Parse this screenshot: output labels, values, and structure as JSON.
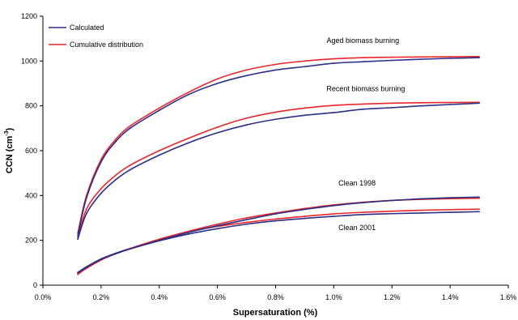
{
  "chart_data": {
    "type": "line",
    "xlabel": "Supersaturation (%)",
    "ylabel_main": "CCN (cm",
    "ylabel_sup": "-3",
    "ylabel_close": ")",
    "xlim": [
      0.0,
      1.6
    ],
    "ylim": [
      0,
      1200
    ],
    "x_ticks": [
      0.0,
      0.2,
      0.4,
      0.6,
      0.8,
      1.0,
      1.2,
      1.4,
      1.6
    ],
    "x_tick_labels": [
      "0.0%",
      "0.2%",
      "0.4%",
      "0.6%",
      "0.8%",
      "1.0%",
      "1.2%",
      "1.4%",
      "1.6%"
    ],
    "y_ticks": [
      0,
      200,
      400,
      600,
      800,
      1000,
      1200
    ],
    "y_tick_labels": [
      "0",
      "200",
      "400",
      "600",
      "800",
      "1000",
      "1200"
    ],
    "grid": false,
    "legend": {
      "placement": "top-left",
      "entries": [
        {
          "label": "Calculated",
          "color": "#2b2f86"
        },
        {
          "label": "Cumulative distribution",
          "color": "#e8262b"
        }
      ]
    },
    "annotations": [
      {
        "text": "Aged biomass burning",
        "x": 1.1,
        "y": 1080
      },
      {
        "text": "Recent biomass burning",
        "x": 1.11,
        "y": 865
      },
      {
        "text": "Clean 1998",
        "x": 1.08,
        "y": 445
      },
      {
        "text": "Clean 2001",
        "x": 1.08,
        "y": 245
      }
    ],
    "series": [
      {
        "group": "Aged biomass burning",
        "kind": "Calculated",
        "color": "#2b2f86",
        "x": [
          0.12,
          0.15,
          0.2,
          0.25,
          0.3,
          0.4,
          0.5,
          0.6,
          0.7,
          0.8,
          0.9,
          1.0,
          1.1,
          1.2,
          1.3,
          1.4,
          1.5
        ],
        "y": [
          220,
          390,
          550,
          640,
          700,
          780,
          850,
          900,
          935,
          960,
          975,
          990,
          997,
          1003,
          1008,
          1012,
          1015
        ]
      },
      {
        "group": "Aged biomass burning",
        "kind": "Cumulative distribution",
        "color": "#e8262b",
        "x": [
          0.12,
          0.15,
          0.2,
          0.25,
          0.3,
          0.4,
          0.5,
          0.6,
          0.7,
          0.8,
          0.9,
          1.0,
          1.1,
          1.2,
          1.3,
          1.4,
          1.5
        ],
        "y": [
          232,
          400,
          560,
          650,
          710,
          790,
          860,
          920,
          960,
          985,
          1000,
          1010,
          1015,
          1017,
          1018,
          1019,
          1020
        ]
      },
      {
        "group": "Recent biomass burning",
        "kind": "Calculated",
        "color": "#2b2f86",
        "x": [
          0.12,
          0.15,
          0.2,
          0.25,
          0.3,
          0.4,
          0.5,
          0.6,
          0.7,
          0.8,
          0.9,
          1.0,
          1.1,
          1.2,
          1.3,
          1.4,
          1.5
        ],
        "y": [
          205,
          320,
          410,
          470,
          515,
          580,
          635,
          680,
          715,
          740,
          758,
          770,
          785,
          792,
          800,
          806,
          812
        ]
      },
      {
        "group": "Recent biomass burning",
        "kind": "Cumulative distribution",
        "color": "#e8262b",
        "x": [
          0.12,
          0.15,
          0.2,
          0.25,
          0.3,
          0.4,
          0.5,
          0.6,
          0.7,
          0.8,
          0.9,
          1.0,
          1.1,
          1.2,
          1.3,
          1.4,
          1.5
        ],
        "y": [
          210,
          340,
          430,
          490,
          535,
          600,
          655,
          705,
          745,
          772,
          790,
          802,
          808,
          812,
          814,
          815,
          816
        ]
      },
      {
        "group": "Clean 1998",
        "kind": "Calculated",
        "color": "#2b2f86",
        "x": [
          0.12,
          0.15,
          0.2,
          0.25,
          0.3,
          0.4,
          0.5,
          0.6,
          0.7,
          0.8,
          0.9,
          1.0,
          1.1,
          1.2,
          1.3,
          1.4,
          1.5
        ],
        "y": [
          55,
          80,
          115,
          140,
          162,
          200,
          235,
          265,
          292,
          318,
          338,
          355,
          368,
          378,
          385,
          390,
          393
        ]
      },
      {
        "group": "Clean 1998",
        "kind": "Cumulative distribution",
        "color": "#e8262b",
        "x": [
          0.12,
          0.15,
          0.2,
          0.25,
          0.3,
          0.4,
          0.5,
          0.6,
          0.7,
          0.8,
          0.9,
          1.0,
          1.1,
          1.2,
          1.3,
          1.4,
          1.5
        ],
        "y": [
          48,
          75,
          112,
          140,
          163,
          205,
          240,
          272,
          300,
          322,
          342,
          358,
          370,
          378,
          383,
          386,
          388
        ]
      },
      {
        "group": "Clean 2001",
        "kind": "Calculated",
        "color": "#2b2f86",
        "x": [
          0.12,
          0.15,
          0.2,
          0.25,
          0.3,
          0.4,
          0.5,
          0.6,
          0.7,
          0.8,
          0.9,
          1.0,
          1.1,
          1.2,
          1.3,
          1.4,
          1.5
        ],
        "y": [
          57,
          82,
          117,
          142,
          162,
          198,
          228,
          252,
          272,
          287,
          298,
          307,
          315,
          319,
          322,
          325,
          328
        ]
      },
      {
        "group": "Clean 2001",
        "kind": "Cumulative distribution",
        "color": "#e8262b",
        "x": [
          0.12,
          0.15,
          0.2,
          0.25,
          0.3,
          0.4,
          0.5,
          0.6,
          0.7,
          0.8,
          0.9,
          1.0,
          1.1,
          1.2,
          1.3,
          1.4,
          1.5
        ],
        "y": [
          50,
          77,
          114,
          142,
          164,
          204,
          238,
          262,
          280,
          295,
          307,
          318,
          325,
          330,
          334,
          337,
          339
        ]
      }
    ]
  }
}
